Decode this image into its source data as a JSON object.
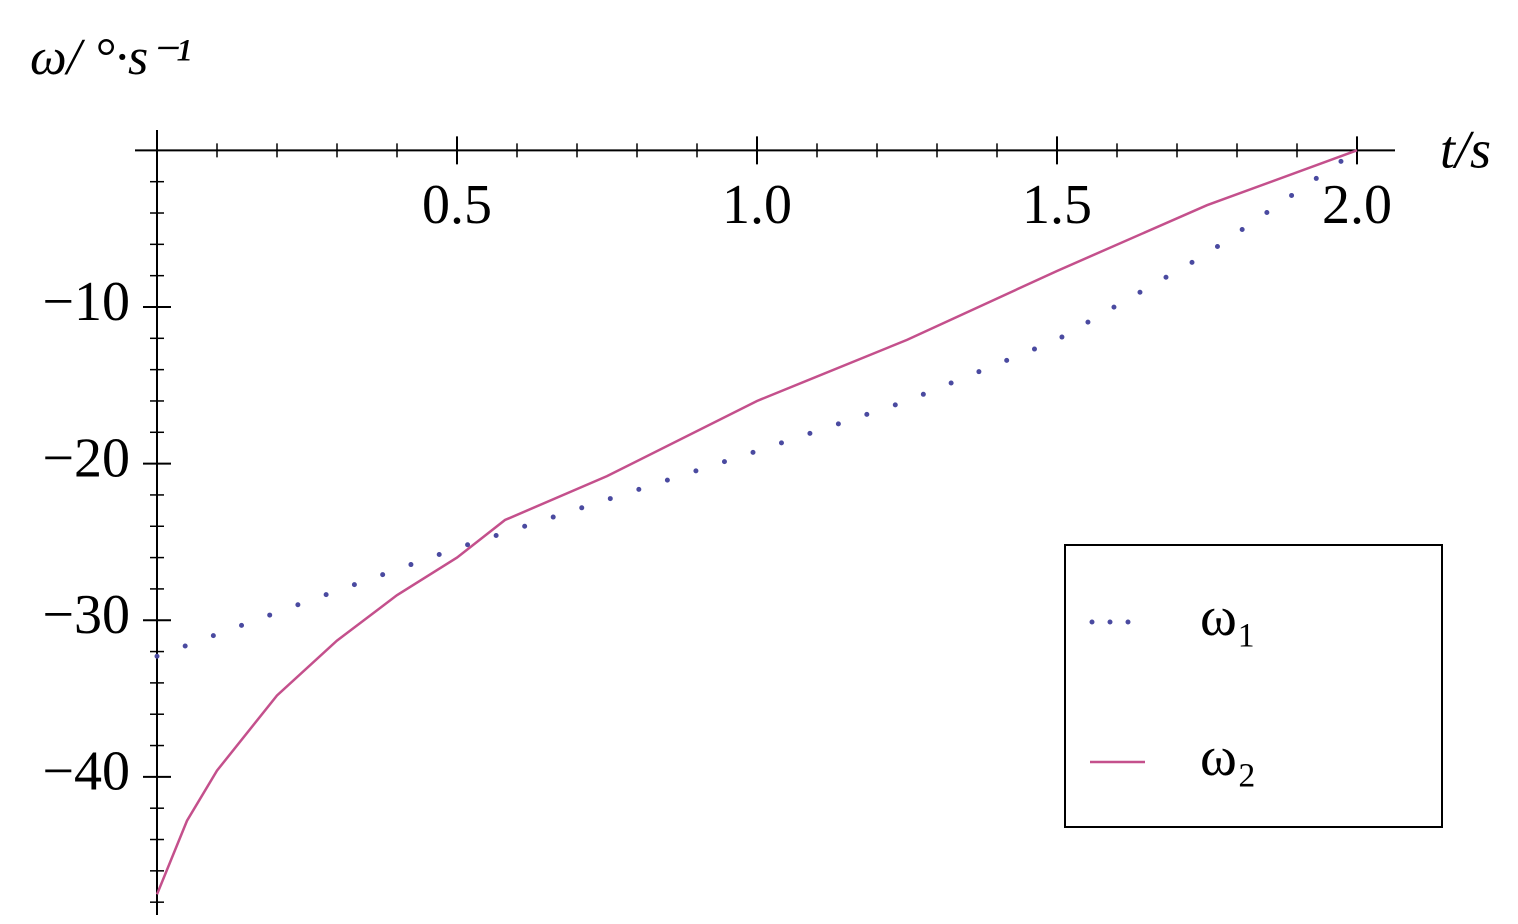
{
  "chart_data": {
    "type": "line",
    "x_label": "t/s",
    "y_label": "ω/ °·s⁻¹",
    "series": [
      {
        "name": "ω₁",
        "color": "#4a4aa0",
        "style": "dotted",
        "x": [
          0,
          0.25,
          0.5,
          0.75,
          1.0,
          1.25,
          1.5,
          1.75,
          2.0
        ],
        "values": [
          -32.3,
          -28.8,
          -25.4,
          -22.3,
          -19.2,
          -16.0,
          -12.1,
          -6.6,
          0
        ]
      },
      {
        "name": "ω₂",
        "color": "#c4508c",
        "style": "solid",
        "x": [
          0,
          0.05,
          0.1,
          0.2,
          0.3,
          0.4,
          0.5,
          0.58,
          0.75,
          1.0,
          1.25,
          1.5,
          1.75,
          2.0
        ],
        "values": [
          -47.5,
          -42.8,
          -39.6,
          -34.8,
          -31.3,
          -28.4,
          -26.0,
          -23.6,
          -20.8,
          -16.0,
          -12.1,
          -7.7,
          -3.5,
          0
        ]
      }
    ],
    "xlim": [
      0,
      2.03
    ],
    "ylim": [
      -48.5,
      1.3
    ],
    "xticks": [
      0.5,
      {
        "value": 1,
        "label": "1.0"
      },
      1.5,
      {
        "value": 2,
        "label": "2.0"
      }
    ],
    "yticks": [
      {
        "value": -10,
        "label": "−10"
      },
      {
        "value": -20,
        "label": "−20"
      },
      {
        "value": -30,
        "label": "−30"
      },
      {
        "value": -40,
        "label": "−40"
      }
    ],
    "x_minor_ticks": [
      0.1,
      0.2,
      0.3,
      0.4,
      0.6,
      0.7,
      0.8,
      0.9,
      1.1,
      1.2,
      1.3,
      1.4,
      1.6,
      1.7,
      1.8,
      1.9
    ],
    "y_minor_ticks": [
      -2,
      -4,
      -6,
      -8,
      -12,
      -14,
      -16,
      -18,
      -22,
      -24,
      -26,
      -28,
      -32,
      -34,
      -36,
      -38,
      -42,
      -44,
      -46,
      -48
    ],
    "legend": "bottom-right"
  }
}
